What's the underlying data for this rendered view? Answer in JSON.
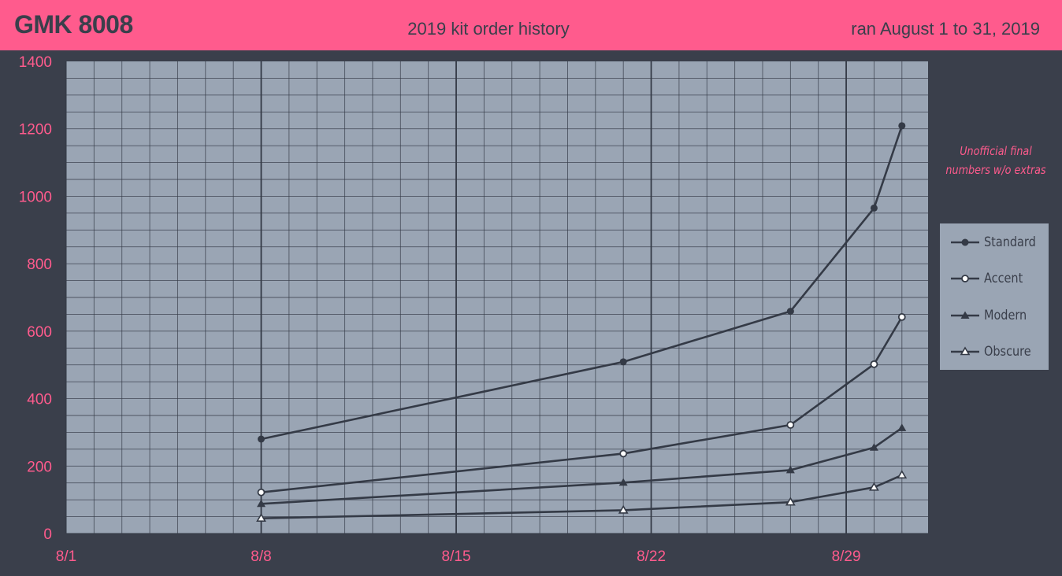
{
  "header": {
    "title": "GMK 8008",
    "subtitle": "2019 kit order history",
    "run_info": "ran August 1 to 31, 2019"
  },
  "note": {
    "line1": "Unofficial final",
    "line2": "numbers w/o extras"
  },
  "colors": {
    "accent": "#ff5b8d",
    "background": "#3a3f4b",
    "plot_area": "#9aa5b4",
    "line": "#343a46"
  },
  "chart_data": {
    "type": "line",
    "x_tick_labels": [
      "8/1",
      "8/8",
      "8/15",
      "8/22",
      "8/29"
    ],
    "y_tick_labels": [
      "0",
      "200",
      "400",
      "600",
      "800",
      "1000",
      "1200",
      "1400"
    ],
    "xlim": [
      "2019-08-01",
      "2019-08-31"
    ],
    "ylim": [
      0,
      1400
    ],
    "grid": true,
    "legend_position": "right",
    "series": [
      {
        "name": "Standard",
        "marker": "filled-circle",
        "points": [
          [
            "2019-08-08",
            280
          ],
          [
            "2019-08-21",
            509
          ],
          [
            "2019-08-27",
            659
          ],
          [
            "2019-08-30",
            965
          ],
          [
            "2019-08-31",
            1209
          ]
        ]
      },
      {
        "name": "Accent",
        "marker": "open-circle",
        "points": [
          [
            "2019-08-08",
            122
          ],
          [
            "2019-08-21",
            237
          ],
          [
            "2019-08-27",
            322
          ],
          [
            "2019-08-30",
            502
          ],
          [
            "2019-08-31",
            642
          ]
        ]
      },
      {
        "name": "Modern",
        "marker": "filled-triangle",
        "points": [
          [
            "2019-08-08",
            88
          ],
          [
            "2019-08-21",
            151
          ],
          [
            "2019-08-27",
            188
          ],
          [
            "2019-08-30",
            255
          ],
          [
            "2019-08-31",
            313
          ]
        ]
      },
      {
        "name": "Obscure",
        "marker": "open-triangle",
        "points": [
          [
            "2019-08-08",
            45
          ],
          [
            "2019-08-21",
            69
          ],
          [
            "2019-08-27",
            93
          ],
          [
            "2019-08-30",
            137
          ],
          [
            "2019-08-31",
            173
          ]
        ]
      }
    ]
  }
}
